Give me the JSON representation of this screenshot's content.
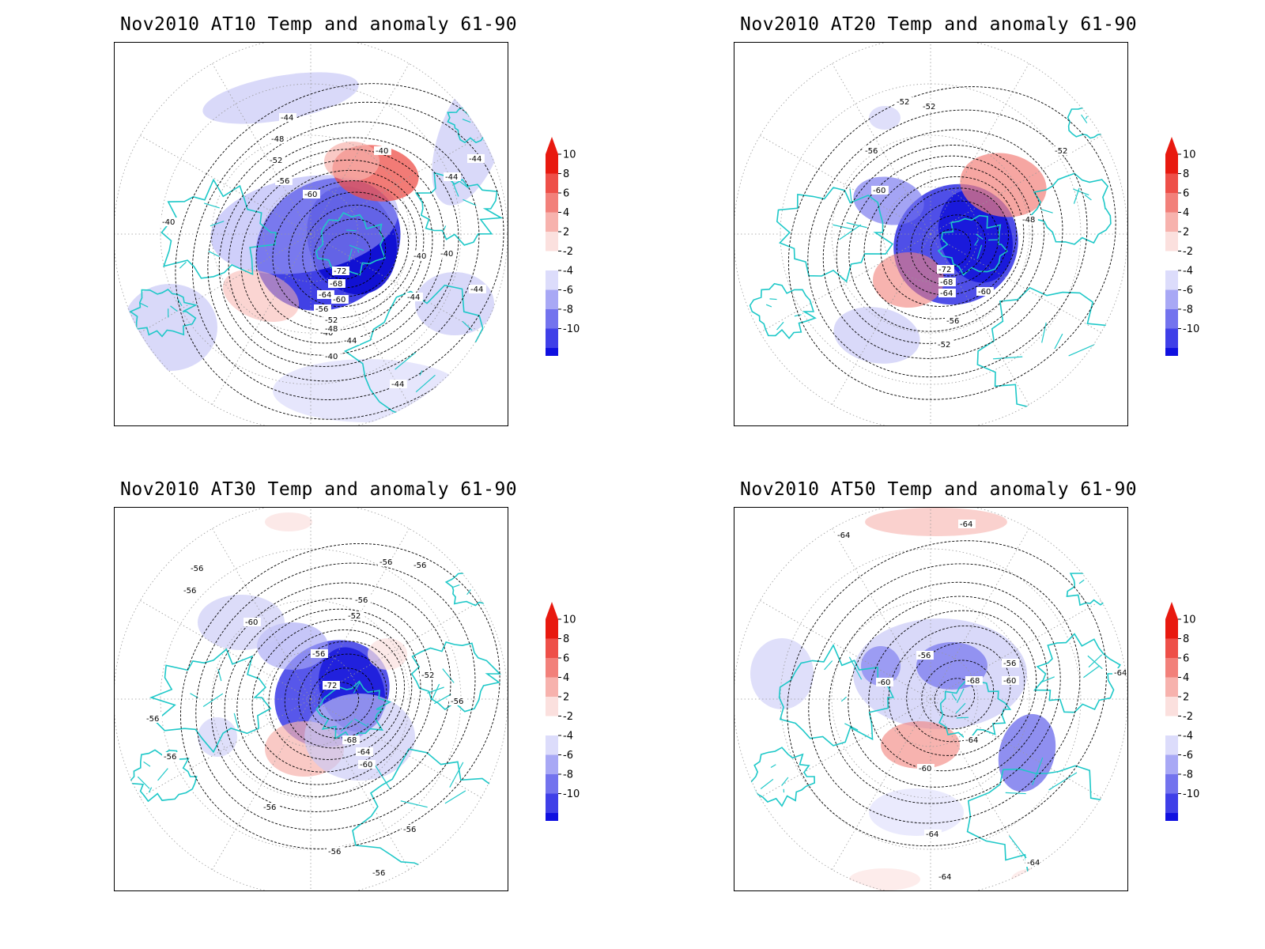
{
  "figure": {
    "panels": [
      {
        "id": "at10",
        "title": "Nov2010 AT10 Temp and anomaly 61-90",
        "contour_labels": [
          "-44",
          "-48",
          "-52",
          "-56",
          "-60",
          "-40",
          "-40",
          "-44",
          "-44",
          "-40",
          "-72",
          "-68",
          "-64",
          "-60",
          "-56",
          "-52",
          "-48",
          "-44",
          "-40",
          "-40",
          "-40",
          "-44",
          "-44",
          "-44"
        ]
      },
      {
        "id": "at20",
        "title": "Nov2010 AT20 Temp and anomaly 61-90",
        "contour_labels": [
          "-52",
          "-52",
          "-56",
          "-60",
          "-52",
          "-48",
          "-72",
          "-68",
          "-64",
          "-60",
          "-56",
          "-52"
        ]
      },
      {
        "id": "at30",
        "title": "Nov2010 AT30 Temp and anomaly 61-90",
        "contour_labels": [
          "-56",
          "-56",
          "-56",
          "-56",
          "-60",
          "-56",
          "-52",
          "-56",
          "-72",
          "-52",
          "-56",
          "-68",
          "-64",
          "-60",
          "-56",
          "-56",
          "-56",
          "-56",
          "-56",
          "-56"
        ]
      },
      {
        "id": "at50",
        "title": "Nov2010 AT50 Temp and anomaly 61-90",
        "contour_labels": [
          "-64",
          "-64",
          "-56",
          "-56",
          "-60",
          "-68",
          "-60",
          "-64",
          "-60",
          "-64",
          "-64",
          "-64",
          "-64"
        ]
      }
    ],
    "colorbar": {
      "ticks": [
        "10",
        "8",
        "6",
        "4",
        "2",
        "-2",
        "-4",
        "-6",
        "-8",
        "-10"
      ],
      "colors": [
        "#e8190f",
        "#ee4f48",
        "#f2807a",
        "#f7b2ad",
        "#fbe0de",
        "#ffffff",
        "#dcdcfb",
        "#a8a8f5",
        "#7373ee",
        "#3f3fe8",
        "#1010e0"
      ]
    },
    "colors": {
      "coastline": "#1ec8c8",
      "contour": "#000000",
      "grid": "#999999"
    }
  }
}
